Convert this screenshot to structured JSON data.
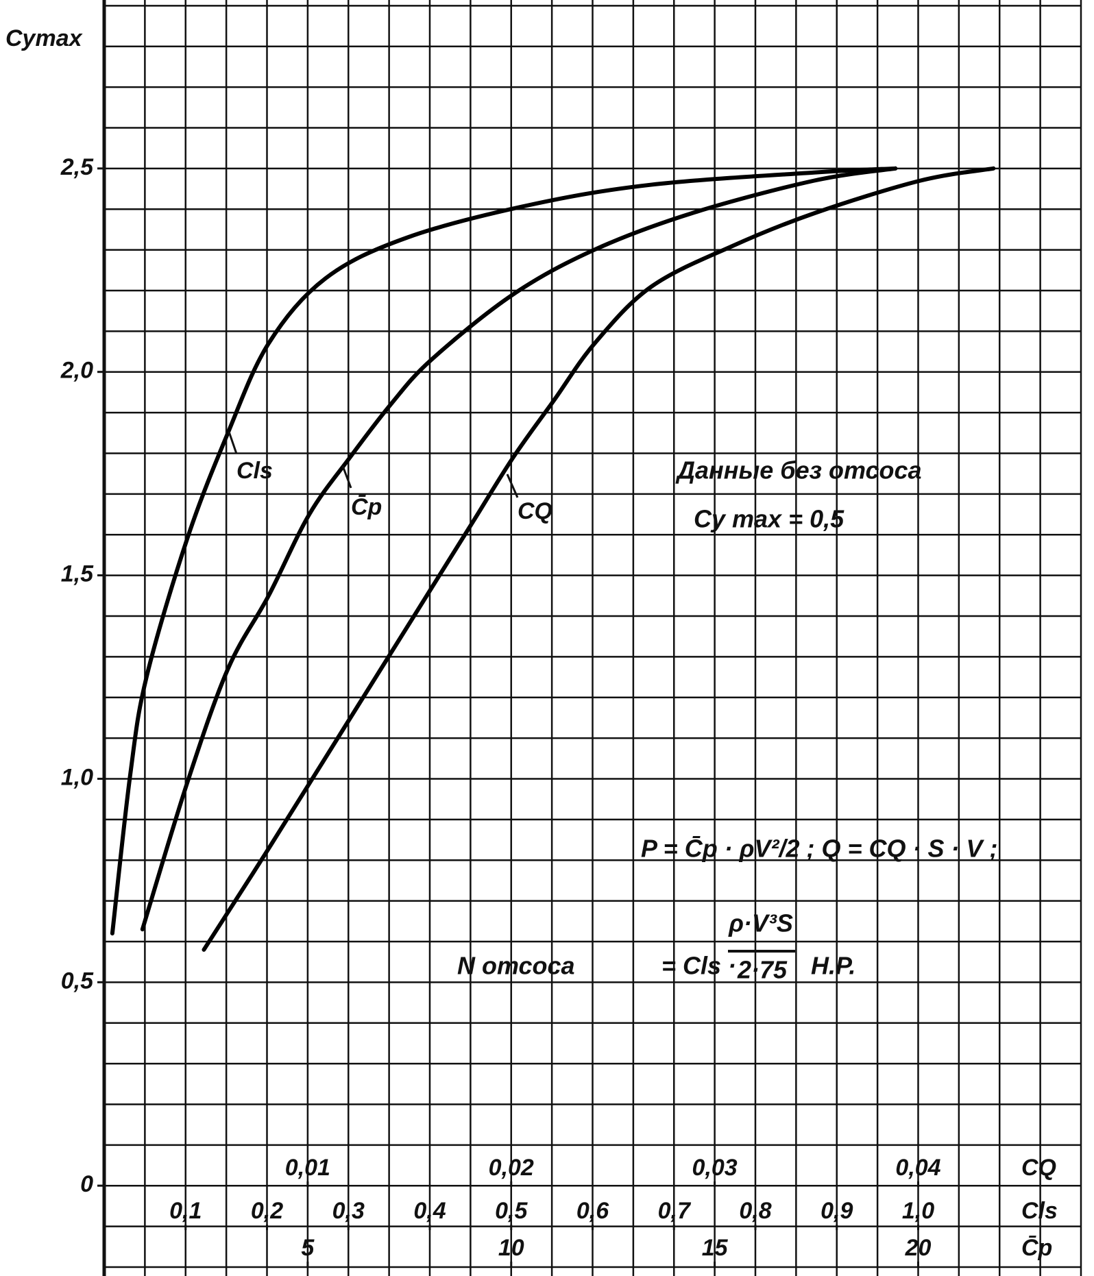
{
  "chart_data": {
    "type": "line",
    "y_label": "Cymax",
    "ylim": [
      -0.222,
      2.914
    ],
    "yticks": [
      0,
      {
        "value": 0.5,
        "label": "0,5"
      },
      {
        "value": 1.0,
        "label": "1,0"
      },
      {
        "value": 1.5,
        "label": "1,5"
      },
      {
        "value": 2.0,
        "label": "2,0"
      },
      {
        "value": 2.5,
        "label": "2,5"
      }
    ],
    "grid": true,
    "grid_step_x": 0.05,
    "grid_step_y": 0.1,
    "x_axes": [
      {
        "name": "Cls",
        "xlim": [
          0,
          1.2
        ],
        "xticks": [
          {
            "value": 0.1,
            "label": "0,1"
          },
          {
            "value": 0.2,
            "label": "0,2"
          },
          {
            "value": 0.3,
            "label": "0,3"
          },
          {
            "value": 0.4,
            "label": "0,4"
          },
          {
            "value": 0.5,
            "label": "0,5"
          },
          {
            "value": 0.6,
            "label": "0,6"
          },
          {
            "value": 0.7,
            "label": "0,7"
          },
          {
            "value": 0.8,
            "label": "0,8"
          },
          {
            "value": 0.9,
            "label": "0,9"
          },
          {
            "value": 1.0,
            "label": "1,0"
          }
        ]
      },
      {
        "name": "CQ",
        "xlim": [
          0,
          0.048
        ],
        "xticks": [
          {
            "value": 0.01,
            "label": "0,01"
          },
          {
            "value": 0.02,
            "label": "0,02"
          },
          {
            "value": 0.03,
            "label": "0,03"
          },
          {
            "value": 0.04,
            "label": "0,04"
          }
        ]
      },
      {
        "name": "C̄p",
        "xlim": [
          0,
          24
        ],
        "xticks": [
          5,
          10,
          15,
          20
        ]
      }
    ],
    "series": [
      {
        "name": "Cls",
        "color": "#000000",
        "axis": 0,
        "x": [
          0.01,
          0.032,
          0.052,
          0.102,
          0.152,
          0.202,
          0.272,
          0.372,
          0.522,
          0.672,
          0.872,
          0.972
        ],
        "values": [
          0.62,
          1.01,
          1.25,
          1.59,
          1.85,
          2.07,
          2.23,
          2.33,
          2.41,
          2.46,
          2.49,
          2.5
        ]
      },
      {
        "name": "C̄p",
        "color": "#000000",
        "axis": 2,
        "x": [
          0.94,
          2.04,
          3.04,
          4.04,
          5.04,
          6.04,
          7.04,
          8.04,
          10.04,
          12.04,
          14.44,
          17.44,
          19.44
        ],
        "values": [
          0.63,
          0.99,
          1.27,
          1.45,
          1.65,
          1.79,
          1.92,
          2.03,
          2.19,
          2.3,
          2.39,
          2.47,
          2.5
        ]
      },
      {
        "name": "CQ",
        "color": "#000000",
        "axis": 1,
        "x": [
          0.0049,
          0.0081,
          0.0121,
          0.0161,
          0.0181,
          0.0201,
          0.0221,
          0.0241,
          0.0269,
          0.0309,
          0.0349,
          0.0401,
          0.0437
        ],
        "values": [
          0.58,
          0.83,
          1.15,
          1.47,
          1.63,
          1.79,
          1.93,
          2.07,
          2.21,
          2.31,
          2.39,
          2.47,
          2.5
        ]
      }
    ],
    "annotations": {
      "note": "Данные без отсоса",
      "baseline": "Cy max = 0,5",
      "formula_p_q": "P = C̄p · ρV²/2 ; Q = CQ · S · V ;",
      "formula_n": "N отсоса",
      "formula_n_eq": "= Cls ·",
      "formula_n_num": "ρ·V³S",
      "formula_n_den": "2·75",
      "formula_n_unit": "H.P."
    }
  }
}
